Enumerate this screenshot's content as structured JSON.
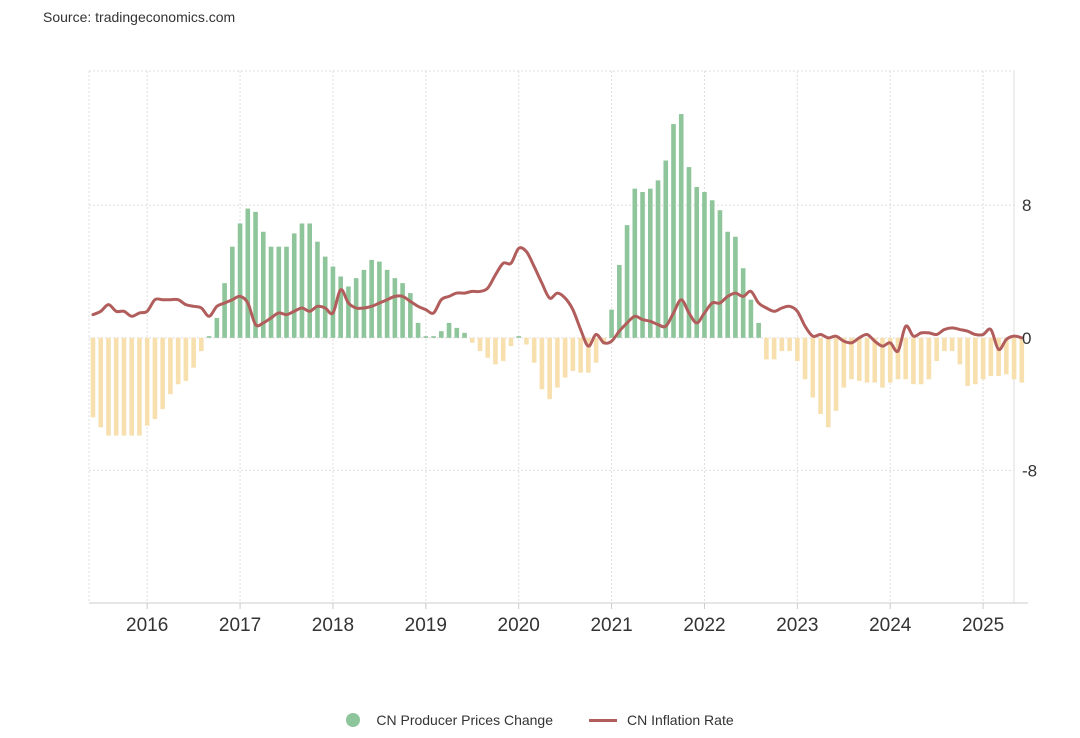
{
  "source": "Source: tradingeconomics.com",
  "chart_data": {
    "type": "bar",
    "x_ticks": [
      "2016",
      "2017",
      "2018",
      "2019",
      "2020",
      "2021",
      "2022",
      "2023",
      "2024",
      "2025"
    ],
    "y_ticks": [
      8,
      0,
      -8
    ],
    "ylim": [
      -16,
      16.1
    ],
    "x_start": "2015-06",
    "legend": "bottom-center",
    "grid": true,
    "colors": {
      "positive": "#8fc59a",
      "negative": "#f7dfae",
      "line": "#b15d5c"
    },
    "series": [
      {
        "name": "CN Producer Prices Change",
        "type": "bar",
        "values": [
          -4.8,
          -5.4,
          -5.9,
          -5.9,
          -5.9,
          -5.9,
          -5.9,
          -5.3,
          -4.9,
          -4.3,
          -3.4,
          -2.8,
          -2.6,
          -1.8,
          -0.8,
          0.1,
          1.2,
          3.3,
          5.5,
          6.9,
          7.8,
          7.6,
          6.4,
          5.5,
          5.5,
          5.5,
          6.3,
          6.9,
          6.9,
          5.8,
          4.9,
          4.3,
          3.7,
          3.1,
          3.6,
          4.1,
          4.7,
          4.6,
          4.1,
          3.6,
          3.3,
          2.7,
          0.9,
          0.1,
          0.1,
          0.4,
          0.9,
          0.6,
          0.3,
          -0.3,
          -0.8,
          -1.2,
          -1.6,
          -1.4,
          -0.5,
          0.1,
          -0.4,
          -1.5,
          -3.1,
          -3.7,
          -3.0,
          -2.4,
          -2.0,
          -2.1,
          -2.1,
          -1.5,
          -0.4,
          1.7,
          4.4,
          6.8,
          9.0,
          8.8,
          9.0,
          9.5,
          10.7,
          12.9,
          13.5,
          10.3,
          9.1,
          8.8,
          8.3,
          7.7,
          6.4,
          6.1,
          4.2,
          2.3,
          0.9,
          -1.3,
          -1.3,
          -0.8,
          -0.8,
          -1.4,
          -2.5,
          -3.6,
          -4.6,
          -5.4,
          -4.4,
          -3.0,
          -2.5,
          -2.6,
          -2.7,
          -2.7,
          -3.0,
          -2.7,
          -2.5,
          -2.5,
          -2.8,
          -2.8,
          -2.5,
          -1.4,
          -0.8,
          -0.8,
          -1.6,
          -2.9,
          -2.8,
          -2.5,
          -2.3,
          -2.3,
          -2.2,
          -2.5,
          -2.7
        ]
      },
      {
        "name": "CN Inflation Rate",
        "type": "line",
        "values": [
          1.4,
          1.6,
          2.0,
          1.6,
          1.6,
          1.3,
          1.5,
          1.6,
          2.3,
          2.3,
          2.3,
          2.3,
          2.0,
          1.9,
          1.8,
          1.3,
          1.9,
          2.1,
          2.3,
          2.5,
          2.1,
          0.8,
          0.9,
          1.2,
          1.5,
          1.4,
          1.6,
          1.8,
          1.6,
          1.9,
          1.8,
          1.5,
          2.9,
          2.1,
          1.8,
          1.8,
          1.9,
          2.1,
          2.3,
          2.5,
          2.5,
          2.2,
          1.9,
          1.7,
          1.5,
          2.3,
          2.5,
          2.7,
          2.7,
          2.8,
          2.8,
          3.0,
          3.8,
          4.5,
          4.5,
          5.4,
          5.2,
          4.3,
          3.3,
          2.4,
          2.7,
          2.4,
          1.7,
          0.5,
          -0.5,
          0.2,
          -0.3,
          -0.2,
          0.4,
          0.9,
          1.3,
          1.1,
          1.0,
          0.8,
          0.7,
          1.5,
          2.3,
          1.5,
          0.9,
          1.5,
          2.1,
          2.1,
          2.5,
          2.7,
          2.5,
          2.8,
          2.1,
          1.8,
          1.6,
          1.8,
          1.9,
          1.6,
          0.7,
          0.1,
          0.2,
          0.0,
          0.1,
          -0.2,
          -0.3,
          0.0,
          0.2,
          -0.2,
          -0.5,
          -0.3,
          -0.8,
          0.7,
          0.1,
          0.3,
          0.3,
          0.2,
          0.5,
          0.6,
          0.5,
          0.4,
          0.2,
          0.2,
          0.5,
          -0.7,
          -0.1,
          0.1,
          0.0
        ]
      }
    ]
  }
}
